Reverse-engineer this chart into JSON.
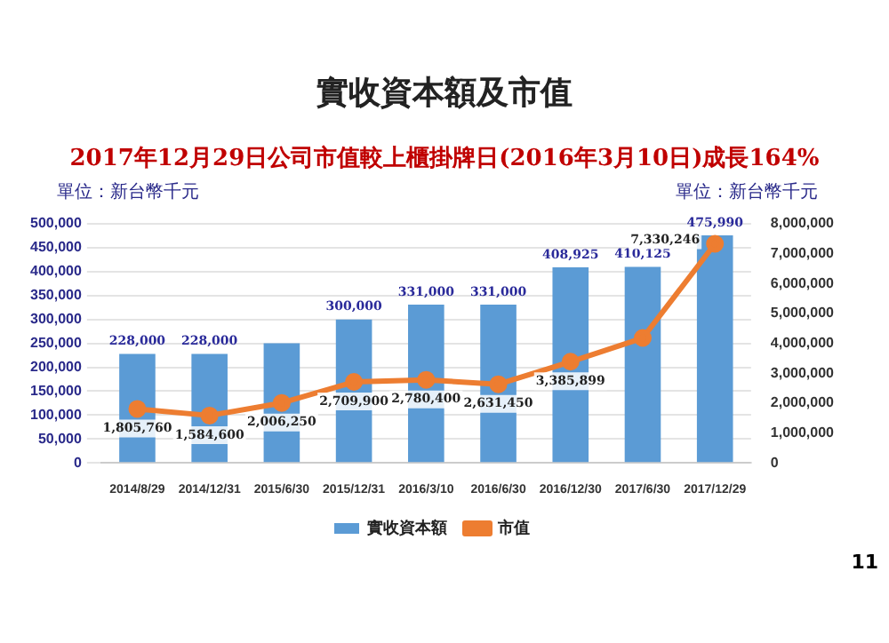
{
  "chart_data": {
    "type": "bar",
    "title": "實收資本額及市值",
    "subtitle": "2017年12月29日公司市值較上櫃掛牌日(2016年3月10日)成長164%",
    "ylabel": "單位：新台幣千元",
    "y2label": "單位：新台幣千元",
    "categories": [
      "2014/8/29",
      "2014/12/31",
      "2015/6/30",
      "2015/12/31",
      "2016/3/10",
      "2016/6/30",
      "2016/12/30",
      "2017/6/30",
      "2017/12/29"
    ],
    "series": [
      {
        "name": "實收資本額",
        "type": "bar",
        "color": "#5b9bd5",
        "values": [
          228000,
          228000,
          250000,
          300000,
          331000,
          331000,
          408925,
          410125,
          475990
        ],
        "value_labels": [
          "228,000",
          "228,000",
          null,
          "300,000",
          "331,000",
          "331,000",
          "408,925",
          "410,125",
          "475,990"
        ]
      },
      {
        "name": "市值",
        "type": "line",
        "axis": "y2",
        "color": "#ed7d31",
        "values": [
          1805760,
          1584600,
          2006250,
          2709900,
          2780400,
          2631450,
          3385899,
          4180000,
          7330246
        ],
        "value_labels": [
          "1,805,760",
          "1,584,600",
          "2,006,250",
          "2,709,900",
          "2,780,400",
          "2,631,450",
          "3,385,899",
          null,
          "7,330,246"
        ]
      }
    ],
    "ylim": [
      0,
      500000
    ],
    "yticks": [
      0,
      {
        "value": 50000,
        "label": "50,000"
      },
      {
        "value": 100000,
        "label": "100,000"
      },
      {
        "value": 150000,
        "label": "150,000"
      },
      {
        "value": 200000,
        "label": "200,000"
      },
      {
        "value": 250000,
        "label": "250,000"
      },
      {
        "value": 300000,
        "label": "300,000"
      },
      {
        "value": 350000,
        "label": "350,000"
      },
      {
        "value": 400000,
        "label": "400,000"
      },
      {
        "value": 450000,
        "label": "450,000"
      },
      {
        "value": 500000,
        "label": "500,000"
      }
    ],
    "y2lim": [
      0,
      8000000
    ],
    "y2ticks": [
      0,
      {
        "value": 1000000,
        "label": "1,000,000"
      },
      {
        "value": 2000000,
        "label": "2,000,000"
      },
      {
        "value": 3000000,
        "label": "3,000,000"
      },
      {
        "value": 4000000,
        "label": "4,000,000"
      },
      {
        "value": 5000000,
        "label": "5,000,000"
      },
      {
        "value": 6000000,
        "label": "6,000,000"
      },
      {
        "value": 7000000,
        "label": "7,000,000"
      },
      {
        "value": 8000000,
        "label": "8,000,000"
      }
    ],
    "grid": "y",
    "legend": "bottom",
    "marker": "circle",
    "line_style": "solid",
    "annotations": [
      "11"
    ]
  }
}
